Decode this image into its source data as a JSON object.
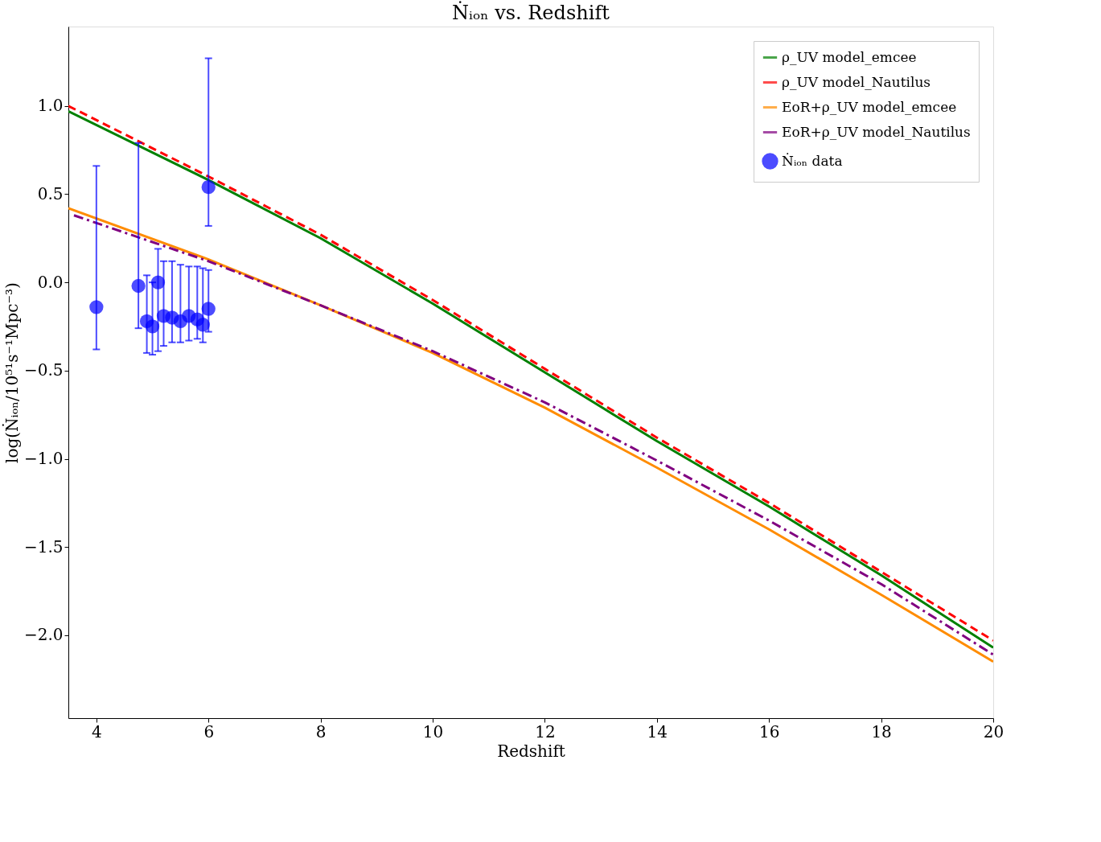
{
  "chart_data": {
    "type": "line",
    "title": "Ṅᵢₒₙ vs. Redshift",
    "xlabel": "Redshift",
    "ylabel": "log(Ṅᵢₒₙ/10⁵¹s⁻¹Mpc⁻³)",
    "xlim": [
      3.5,
      20
    ],
    "ylim": [
      -2.47,
      1.45
    ],
    "xticks": [
      4,
      6,
      8,
      10,
      12,
      14,
      16,
      18,
      20
    ],
    "yticks": [
      {
        "value": -2.0,
        "label": "−2.0"
      },
      {
        "value": -1.5,
        "label": "−1.5"
      },
      {
        "value": -1.0,
        "label": "−1.0"
      },
      {
        "value": -0.5,
        "label": "−0.5"
      },
      {
        "value": 0.0,
        "label": "0.0"
      },
      {
        "value": 0.5,
        "label": "0.5"
      },
      {
        "value": 1.0,
        "label": "1.0"
      }
    ],
    "grid": false,
    "legend": "top right",
    "series": [
      {
        "name": "ρ_UV model_emcee",
        "color": "#008000",
        "line_style": "solid",
        "x": [
          3.5,
          6,
          8,
          10,
          12,
          14,
          16,
          18,
          20
        ],
        "values": [
          0.97,
          0.58,
          0.25,
          -0.12,
          -0.51,
          -0.9,
          -1.27,
          -1.66,
          -2.07
        ]
      },
      {
        "name": "ρ_UV model_Nautilus",
        "color": "#ff0000",
        "line_style": "dashed",
        "x": [
          3.5,
          6,
          8,
          10,
          12,
          14,
          16,
          18,
          20
        ],
        "values": [
          1.0,
          0.6,
          0.27,
          -0.1,
          -0.49,
          -0.88,
          -1.25,
          -1.64,
          -2.03
        ]
      },
      {
        "name": "EoR+ρ_UV model_emcee",
        "color": "#ff8c00",
        "line_style": "solid",
        "x": [
          3.5,
          6,
          8,
          10,
          12,
          14,
          16,
          18,
          20
        ],
        "values": [
          0.42,
          0.13,
          -0.13,
          -0.4,
          -0.71,
          -1.05,
          -1.4,
          -1.77,
          -2.15
        ]
      },
      {
        "name": "EoR+ρ_UV model_Nautilus",
        "color": "#800080",
        "line_style": "dashdot",
        "x": [
          3.6,
          6,
          8,
          10,
          12,
          14,
          16,
          18,
          20
        ],
        "values": [
          0.38,
          0.12,
          -0.13,
          -0.39,
          -0.68,
          -1.01,
          -1.35,
          -1.71,
          -2.11
        ]
      },
      {
        "name": "Ṅᵢₒₙ data",
        "type": "scatter",
        "color": "#0000ff",
        "marker": "circle",
        "x": [
          4.0,
          4.75,
          4.9,
          5.0,
          5.1,
          5.2,
          5.35,
          5.5,
          5.65,
          5.8,
          5.9,
          6.0,
          6.0
        ],
        "values": [
          -0.14,
          -0.02,
          -0.22,
          -0.25,
          0.0,
          -0.19,
          -0.2,
          -0.22,
          -0.19,
          -0.21,
          -0.24,
          -0.15,
          0.54
        ],
        "errors": [
          [
            -0.38,
            0.66
          ],
          [
            -0.26,
            0.79
          ],
          [
            -0.4,
            0.04
          ],
          [
            -0.41,
            0.0
          ],
          [
            -0.39,
            0.19
          ],
          [
            -0.36,
            0.12
          ],
          [
            -0.34,
            0.12
          ],
          [
            -0.34,
            0.1
          ],
          [
            -0.33,
            0.09
          ],
          [
            -0.32,
            0.09
          ],
          [
            -0.34,
            0.08
          ],
          [
            -0.28,
            0.07
          ],
          [
            0.32,
            1.27
          ]
        ]
      }
    ]
  }
}
